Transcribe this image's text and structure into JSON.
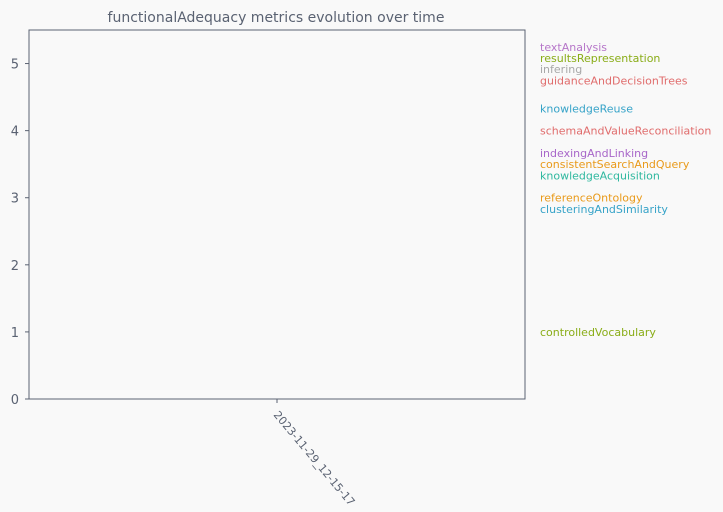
{
  "chart_data": {
    "type": "line",
    "title": "functionalAdequacy metrics evolution over time",
    "xlabel": "",
    "ylabel": "",
    "x": [
      "2023-11-29_12-15-17"
    ],
    "ylim": [
      0,
      5.5
    ],
    "yticks": [
      0,
      1,
      2,
      3,
      4,
      5
    ],
    "grid": false,
    "legend": "right",
    "series": [
      {
        "name": "textAnalysis",
        "values": [
          5.25
        ],
        "color": "#b676c9"
      },
      {
        "name": "resultsRepresentation",
        "values": [
          5.08
        ],
        "color": "#8aad18"
      },
      {
        "name": "infering",
        "values": [
          4.92
        ],
        "color": "#a8a8a8"
      },
      {
        "name": "guidanceAndDecisionTrees",
        "values": [
          4.75
        ],
        "color": "#e06c6c"
      },
      {
        "name": "knowledgeReuse",
        "values": [
          4.33
        ],
        "color": "#36a3c8"
      },
      {
        "name": "schemaAndValueReconciliation",
        "values": [
          4.0
        ],
        "color": "#e06c6c"
      },
      {
        "name": "indexingAndLinking",
        "values": [
          3.67
        ],
        "color": "#a866c9"
      },
      {
        "name": "consistentSearchAndQuery",
        "values": [
          3.5
        ],
        "color": "#e99a1a"
      },
      {
        "name": "knowledgeAcquisition",
        "values": [
          3.33
        ],
        "color": "#2fb89f"
      },
      {
        "name": "referenceOntology",
        "values": [
          3.0
        ],
        "color": "#e99a1a"
      },
      {
        "name": "clusteringAndSimilarity",
        "values": [
          2.83
        ],
        "color": "#36a3c8"
      },
      {
        "name": "controlledVocabulary",
        "values": [
          1.0
        ],
        "color": "#8aad18"
      }
    ]
  }
}
